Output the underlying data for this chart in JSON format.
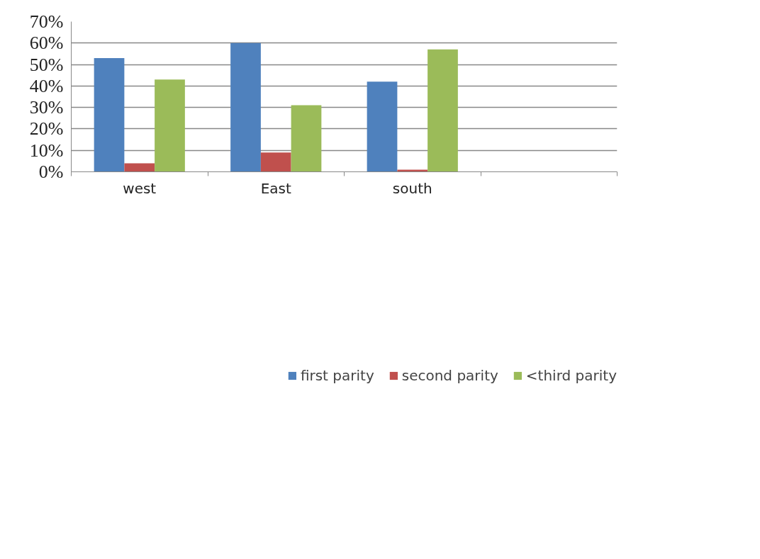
{
  "chart_data": {
    "type": "bar",
    "categories": [
      "west",
      "East",
      "south",
      null
    ],
    "series": [
      {
        "name": "first parity",
        "color": "#4f81bd",
        "values": [
          53,
          60,
          42,
          null
        ]
      },
      {
        "name": "second parity",
        "color": "#c0504d",
        "values": [
          4,
          9,
          1,
          null
        ]
      },
      {
        "name": "<third parity",
        "color": "#9bbb59",
        "values": [
          43,
          31,
          57,
          null
        ]
      }
    ],
    "ylim": [
      0,
      70
    ],
    "yticks": [
      {
        "value": 0,
        "label": "0%"
      },
      {
        "value": 10,
        "label": "10%"
      },
      {
        "value": 20,
        "label": "20%"
      },
      {
        "value": 30,
        "label": "30%"
      },
      {
        "value": 40,
        "label": "40%"
      },
      {
        "value": 50,
        "label": "50%"
      },
      {
        "value": 60,
        "label": "60%"
      },
      {
        "value": 70,
        "label": "70%"
      }
    ],
    "grid": "y",
    "legend": "bottom"
  }
}
